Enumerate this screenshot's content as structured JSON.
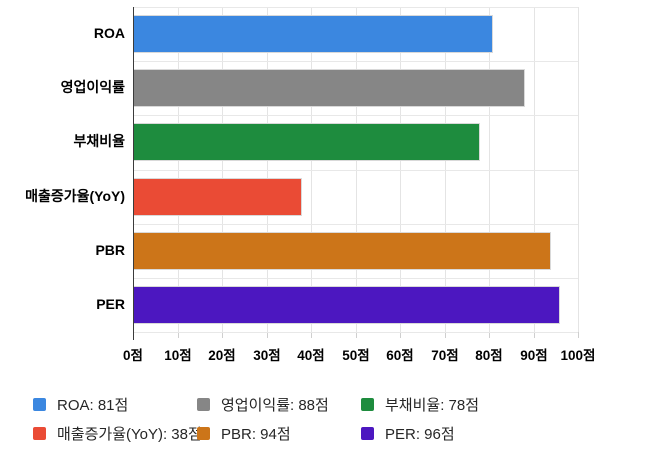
{
  "chart_data": {
    "type": "bar",
    "orientation": "horizontal",
    "title": "",
    "xlabel": "",
    "ylabel": "",
    "unit": "점",
    "categories": [
      "ROA",
      "영업이익률",
      "부채비율",
      "매출증가율(YoY)",
      "PBR",
      "PER"
    ],
    "values": [
      81,
      88,
      78,
      38,
      94,
      96
    ],
    "colors": [
      "#3b87e0",
      "#868686",
      "#1e8c3e",
      "#ea4b35",
      "#cc7519",
      "#4c17c0"
    ],
    "xlim": [
      0,
      100
    ],
    "x_tick_labels": [
      "0점",
      "10점",
      "20점",
      "30점",
      "40점",
      "50점",
      "60점",
      "70점",
      "80점",
      "90점",
      "100점"
    ],
    "grid": true,
    "legend_position": "bottom",
    "legend": [
      {
        "label": "ROA: 81점",
        "color": "#3b87e0"
      },
      {
        "label": "영업이익률: 88점",
        "color": "#868686"
      },
      {
        "label": "부채비율: 78점",
        "color": "#1e8c3e"
      },
      {
        "label": "매출증가율(YoY): 38점",
        "color": "#ea4b35"
      },
      {
        "label": "PBR: 94점",
        "color": "#cc7519"
      },
      {
        "label": "PER: 96점",
        "color": "#4c17c0"
      }
    ]
  }
}
